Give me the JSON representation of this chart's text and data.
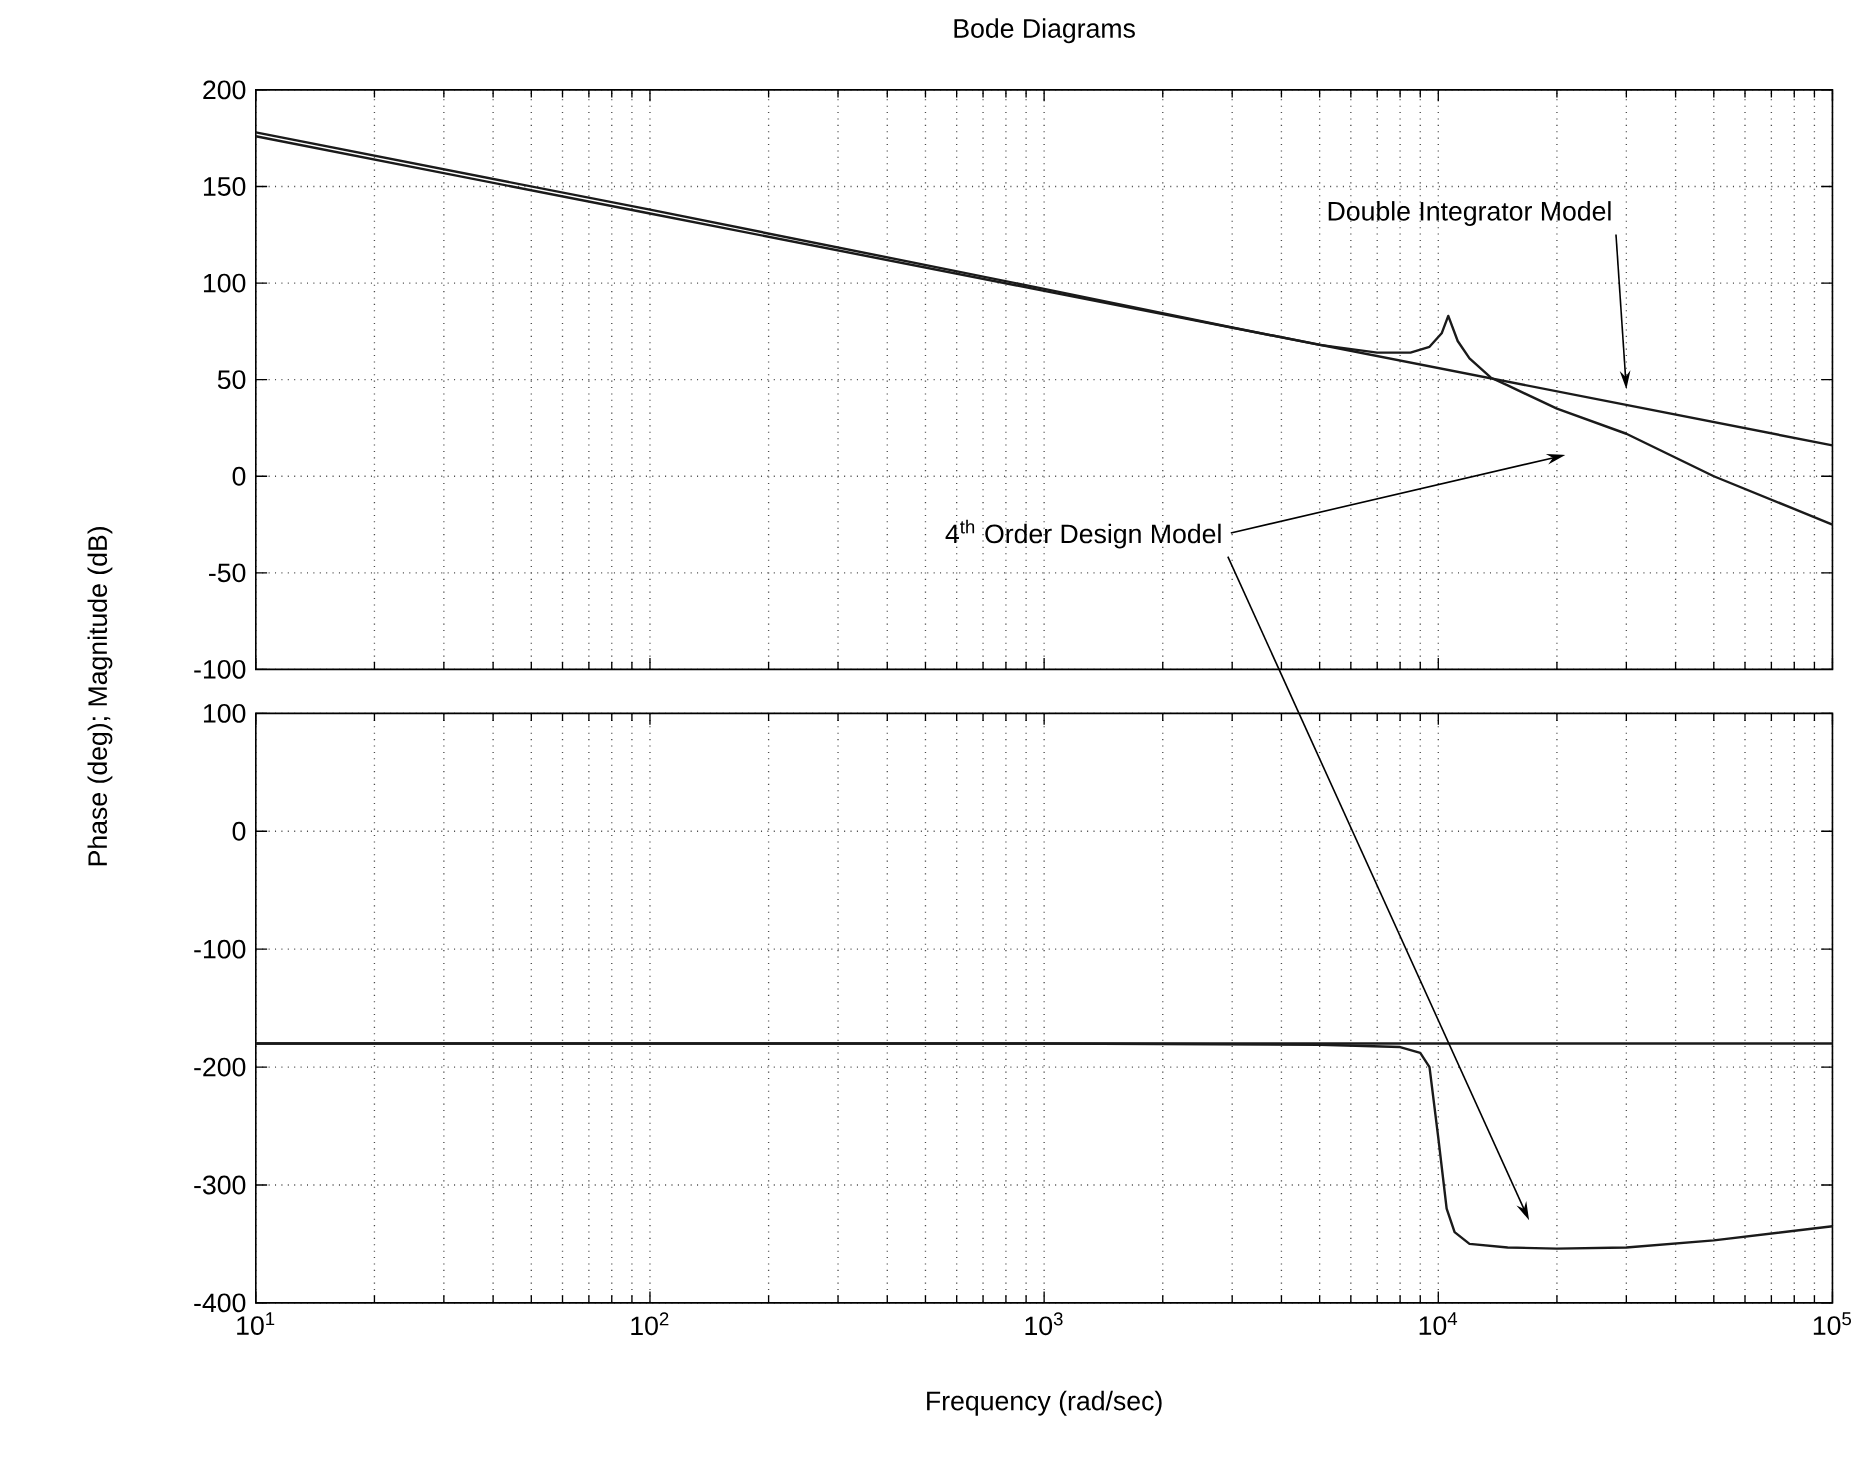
{
  "chart_data": [
    {
      "type": "line",
      "title": "Bode Diagrams",
      "ylabel": "Phase (deg); Magnitude (dB)",
      "log": "x",
      "grid": true,
      "tick_labels": "y",
      "xlim": [
        10,
        100000
      ],
      "ylim": [
        -100,
        200
      ],
      "yticks": [
        -100,
        -50,
        0,
        50,
        100,
        150,
        200
      ],
      "xticks": [
        {
          "value": 10,
          "label": null
        },
        {
          "value": 100,
          "label": null
        },
        {
          "value": 1000,
          "label": null
        },
        {
          "value": 10000,
          "label": null
        },
        {
          "value": 100000,
          "label": null
        }
      ],
      "series": [
        {
          "color": "#1a1a1a",
          "x": [
            10,
            100,
            1000,
            10000,
            100000
          ],
          "values": [
            176,
            136,
            96,
            56,
            16
          ]
        },
        {
          "color": "#1a1a1a",
          "x": [
            10,
            100,
            1000,
            3000,
            5000,
            7000,
            8500,
            9500,
            10200,
            10600,
            11200,
            12000,
            13600,
            15000,
            20000,
            30000,
            50000,
            100000
          ],
          "values": [
            178,
            138,
            97,
            77,
            68,
            64,
            64,
            67,
            74,
            83,
            70,
            61,
            51,
            47,
            35,
            22,
            0,
            -25
          ]
        }
      ],
      "annotations": [
        "Double Integrator Model",
        "4$^{th}$ Order Design Model"
      ]
    },
    {
      "type": "line",
      "xlabel": "Frequency (rad/sec)",
      "log": "x",
      "grid": true,
      "xlim": [
        10,
        100000
      ],
      "ylim": [
        -400,
        100
      ],
      "yticks": [
        -400,
        -300,
        -200,
        -100,
        0,
        100
      ],
      "xticks": [
        {
          "value": 10,
          "label": "10$^{1}$"
        },
        {
          "value": 100,
          "label": "10$^{2}$"
        },
        {
          "value": 1000,
          "label": "10$^{3}$"
        },
        {
          "value": 10000,
          "label": "10$^{4}$"
        },
        {
          "value": 100000,
          "label": "10$^{5}$"
        }
      ],
      "series": [
        {
          "color": "#1a1a1a",
          "x": [
            10,
            100000
          ],
          "values": [
            -180,
            -180
          ]
        },
        {
          "color": "#1a1a1a",
          "x": [
            10,
            1000,
            5000,
            8000,
            9000,
            9500,
            10000,
            10500,
            11000,
            12000,
            15000,
            20000,
            30000,
            50000,
            100000
          ],
          "values": [
            -180,
            -180,
            -181,
            -183,
            -188,
            -200,
            -260,
            -320,
            -340,
            -350,
            -353,
            -354,
            -353,
            -347,
            -335
          ]
        }
      ]
    }
  ]
}
